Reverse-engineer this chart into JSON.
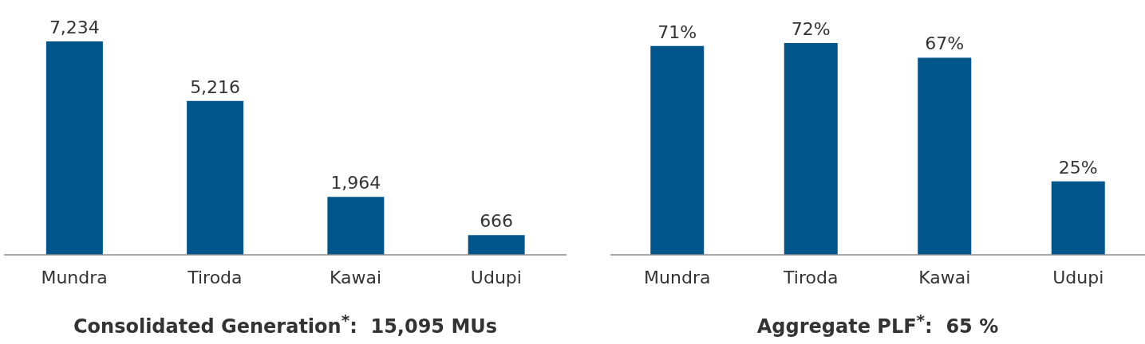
{
  "chart_data": [
    {
      "type": "bar",
      "title": "Consolidated Generation$^{*}$:  15,095 MUs",
      "categories": [
        "Mundra",
        "Tiroda",
        "Kawai",
        "Udupi"
      ],
      "values": [
        7234,
        5216,
        1964,
        666
      ],
      "value_labels": [
        "7,234",
        "5,216",
        "1,964",
        "666"
      ],
      "color": "#00558b",
      "grid": false,
      "legend": false
    },
    {
      "type": "bar",
      "title": "Aggregate PLF$^{*}$:  65 %",
      "categories": [
        "Mundra",
        "Tiroda",
        "Kawai",
        "Udupi"
      ],
      "values": [
        71,
        72,
        67,
        25
      ],
      "value_labels": [
        "71%",
        "72%",
        "67%",
        "25%"
      ],
      "color": "#00558b",
      "grid": false,
      "legend": false
    }
  ]
}
